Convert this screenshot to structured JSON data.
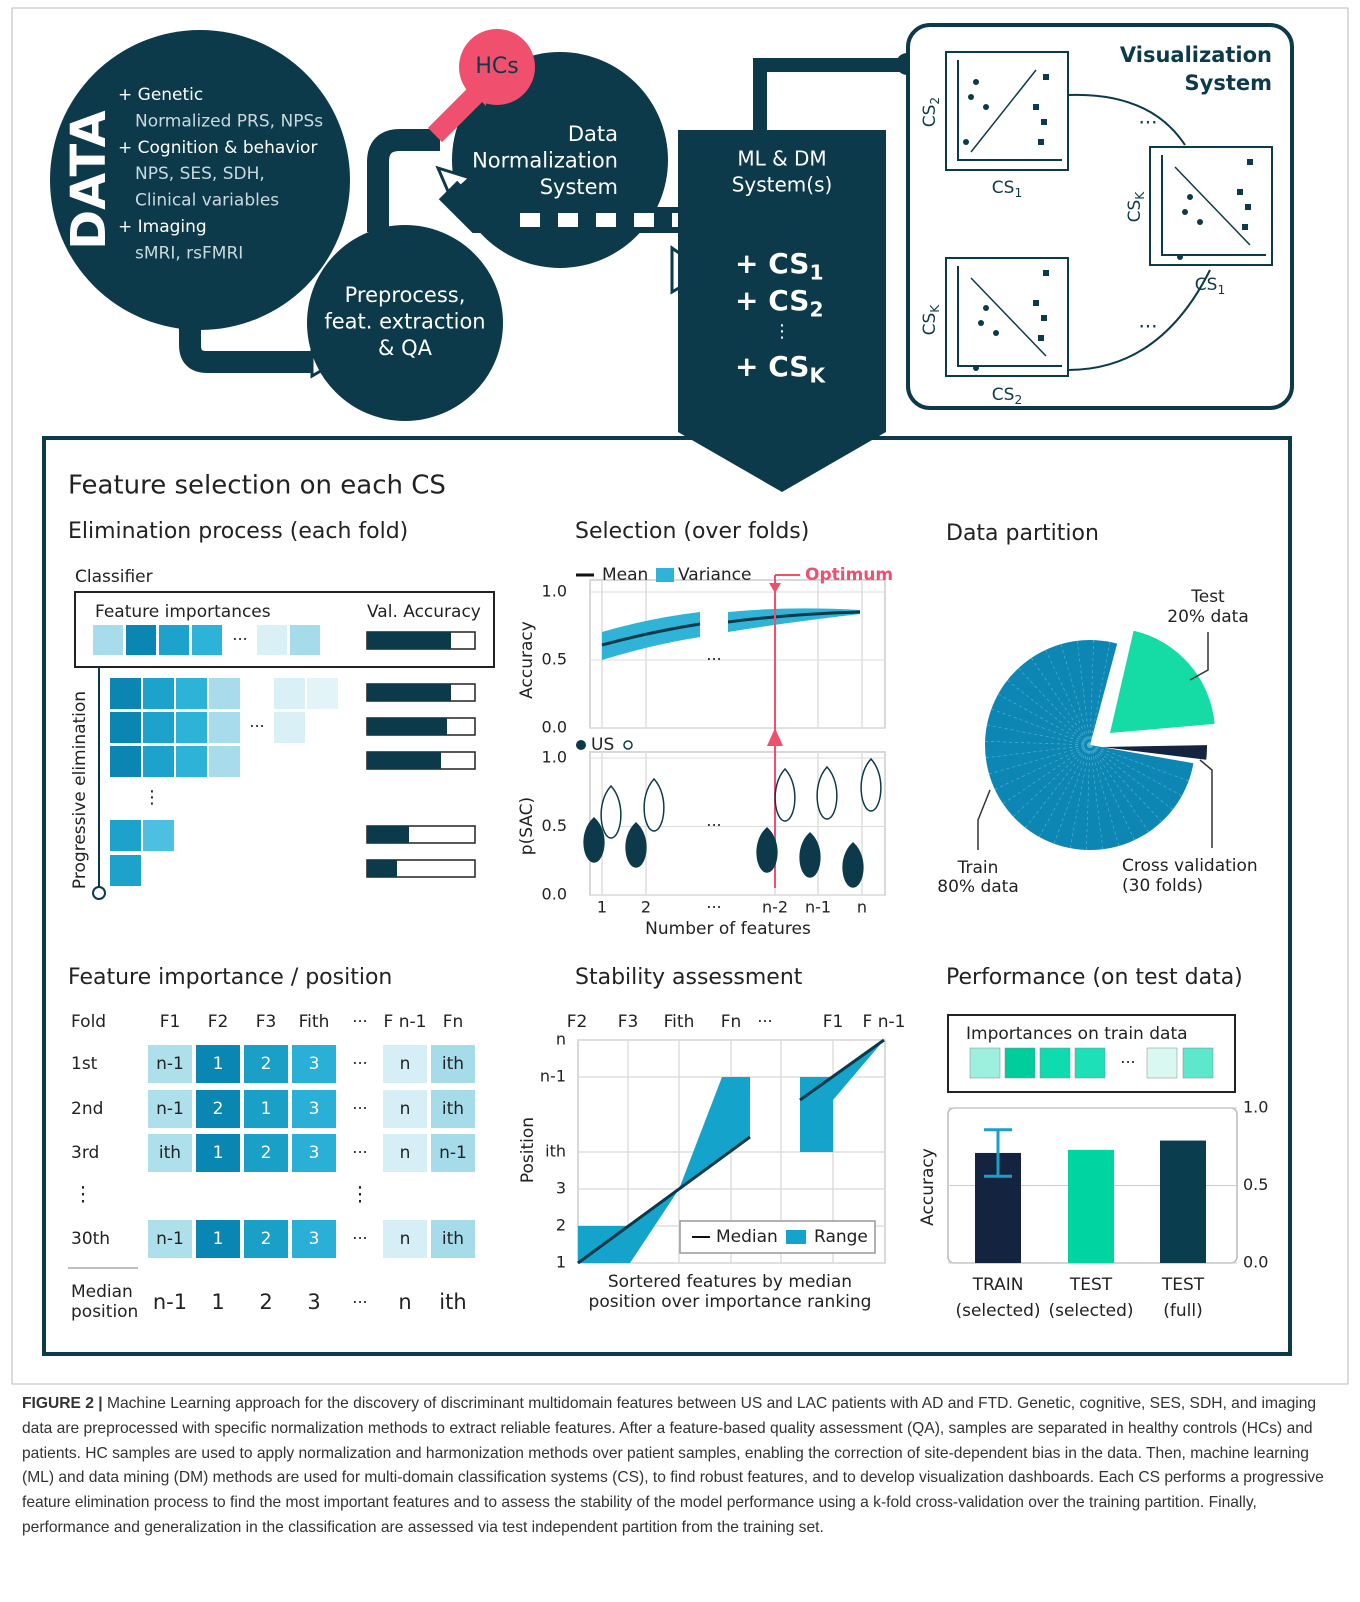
{
  "data_circle": {
    "title": "DATA",
    "items": [
      {
        "head": "+ Genetic",
        "detail": [
          "Normalized PRS, NPSs"
        ]
      },
      {
        "head": "+ Cognition & behavior",
        "detail": [
          "NPS, SES, SDH,",
          "Clinical variables"
        ]
      },
      {
        "head": "+ Imaging",
        "detail": [
          "sMRI, rsFMRI"
        ]
      }
    ]
  },
  "hcs": "HCs",
  "normalization": [
    "Data",
    "Normalization",
    "System"
  ],
  "preprocess": [
    "Preprocess,",
    "feat. extraction",
    "& QA"
  ],
  "ml_system": {
    "title": [
      "ML & DM",
      "System(s)"
    ],
    "components": [
      {
        "prefix": "+ CS",
        "sub": "1"
      },
      {
        "prefix": "+ CS",
        "sub": "2"
      },
      {
        "prefix": "+ CS",
        "sub": "K"
      }
    ],
    "vdots": "⋮"
  },
  "visualization": {
    "title": [
      "Visualization",
      "System"
    ],
    "axis_base": "CS",
    "plots": [
      {
        "x_sub": "1",
        "y_sub": "2"
      },
      {
        "x_sub": "1",
        "y_sub": "K"
      },
      {
        "x_sub": "2",
        "y_sub": "K"
      }
    ],
    "ellipsis": "..."
  },
  "panel": {
    "title": "Feature selection on each CS"
  },
  "elimination": {
    "title": "Elimination process (each fold)",
    "classifier": "Classifier",
    "feature_importances": "Feature importances",
    "val_accuracy": "Val. Accuracy",
    "axis": "Progressive elimination",
    "ellipsis": "···",
    "vdots": "⋮"
  },
  "selection": {
    "title": "Selection (over folds)",
    "legend": [
      "Mean",
      "Variance"
    ],
    "optimum": "Optimum",
    "accuracy": {
      "label": "Accuracy",
      "ylim": [
        0,
        1
      ],
      "yticks": [
        {
          "value": 0,
          "label": "0.0"
        },
        {
          "value": 0.5,
          "label": "0.5"
        },
        {
          "value": 1,
          "label": "1.0"
        }
      ]
    },
    "psac": {
      "label": "p(SAC)",
      "legend": [
        "US"
      ],
      "ylim": [
        0,
        1
      ],
      "yticks": [
        {
          "value": 0,
          "label": "0.0"
        },
        {
          "value": 0.5,
          "label": "0.5"
        },
        {
          "value": 1,
          "label": "1.0"
        }
      ]
    },
    "x_labels": [
      "1",
      "2",
      "···",
      "n-2",
      "n-1",
      "n"
    ],
    "x_title": "Number of features"
  },
  "partition": {
    "title": "Data partition",
    "test": [
      "Test",
      "20% data"
    ],
    "train": [
      "Train",
      "80% data"
    ],
    "cv": [
      "Cross validation",
      "(30 folds)"
    ]
  },
  "importance_table": {
    "title": "Feature importance / position",
    "corner": "Fold",
    "features": [
      "F1",
      "F2",
      "F3",
      "Fith",
      "F n-1",
      "Fn"
    ],
    "ellipsis": "···",
    "vdots": "⋮",
    "rows": [
      {
        "fold": "1st",
        "values": [
          "n-1",
          "1",
          "2",
          "3",
          "n",
          "ith"
        ]
      },
      {
        "fold": "2nd",
        "values": [
          "n-1",
          "2",
          "1",
          "3",
          "n",
          "ith"
        ]
      },
      {
        "fold": "3rd",
        "values": [
          "ith",
          "1",
          "2",
          "3",
          "n",
          "n-1"
        ]
      },
      {
        "fold": "30th",
        "values": [
          "n-1",
          "1",
          "2",
          "3",
          "n",
          "ith"
        ]
      }
    ],
    "median": {
      "label": [
        "Median",
        "position"
      ],
      "values": [
        "n-1",
        "1",
        "2",
        "3",
        "n",
        "ith"
      ]
    }
  },
  "stability": {
    "title": "Stability assessment",
    "features": [
      "F2",
      "F3",
      "Fith",
      "Fn",
      "F1",
      "F n-1"
    ],
    "ellipsis": "···",
    "positions": [
      "1",
      "2",
      "3",
      "ith",
      "n-1",
      "n"
    ],
    "axis": "Position",
    "legend": [
      "Median",
      "Range"
    ],
    "caption": [
      "Sortered features by median",
      "position over importance ranking"
    ]
  },
  "performance": {
    "title": "Performance (on test data)",
    "importances_label": "Importances on train data",
    "ellipsis": "···",
    "axis": "Accuracy",
    "ylim": [
      0,
      1
    ],
    "yticks": [
      {
        "value": 0,
        "label": "0.0"
      },
      {
        "value": 0.5,
        "label": "0.5"
      },
      {
        "value": 1,
        "label": "1.0"
      }
    ],
    "bars": [
      {
        "label": [
          "TRAIN",
          "(selected)"
        ],
        "value": 0.71,
        "error": 0.15,
        "color": "#14233f"
      },
      {
        "label": [
          "TEST",
          "(selected)"
        ],
        "value": 0.73,
        "color": "#00d4a0"
      },
      {
        "label": [
          "TEST",
          "(full)"
        ],
        "value": 0.79,
        "color": "#0a3d4e"
      }
    ]
  },
  "caption": {
    "label": "FIGURE 2 |",
    "text": "Machine Learning approach for the discovery of discriminant multidomain features between US and LAC patients with AD and FTD. Genetic, cognitive, SES, SDH, and imaging data are preprocessed with specific normalization methods to extract reliable features. After a feature-based quality assessment (QA), samples are separated in healthy controls (HCs) and patients. HC samples are used to apply normalization and harmonization methods over patient samples, enabling the correction of site-dependent bias in the data. Then, machine learning (ML) and data mining (DM) methods are used for multi-domain classification systems (CS), to find robust features, and to develop visualization dashboards. Each CS performs a progressive feature elimination process to find the most important features and to assess the stability of the model performance using a k-fold cross-validation over the training partition. Finally, performance and generalization in the classification are assessed via test independent partition from the training set."
  }
}
